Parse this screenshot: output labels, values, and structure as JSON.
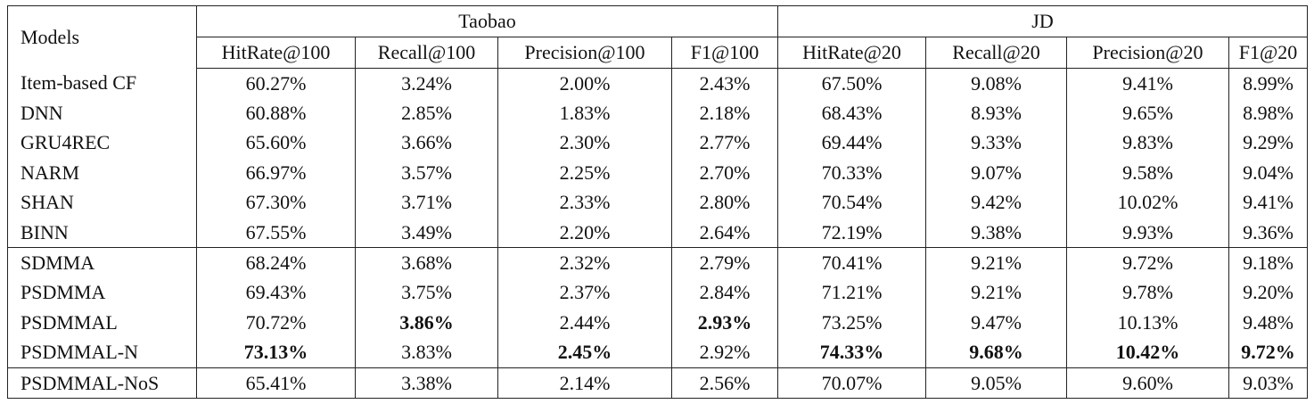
{
  "table": {
    "corner": "Models",
    "groups": [
      "Taobao",
      "JD"
    ],
    "columns": [
      "HitRate@100",
      "Recall@100",
      "Precision@100",
      "F1@100",
      "HitRate@20",
      "Recall@20",
      "Precision@20",
      "F1@20"
    ],
    "rows": [
      {
        "model": "Item-based CF",
        "values": [
          "60.27%",
          "3.24%",
          "2.00%",
          "2.43%",
          "67.50%",
          "9.08%",
          "9.41%",
          "8.99%"
        ],
        "bold": [],
        "group_start": false
      },
      {
        "model": "DNN",
        "values": [
          "60.88%",
          "2.85%",
          "1.83%",
          "2.18%",
          "68.43%",
          "8.93%",
          "9.65%",
          "8.98%"
        ],
        "bold": [],
        "group_start": false
      },
      {
        "model": "GRU4REC",
        "values": [
          "65.60%",
          "3.66%",
          "2.30%",
          "2.77%",
          "69.44%",
          "9.33%",
          "9.83%",
          "9.29%"
        ],
        "bold": [],
        "group_start": false
      },
      {
        "model": "NARM",
        "values": [
          "66.97%",
          "3.57%",
          "2.25%",
          "2.70%",
          "70.33%",
          "9.07%",
          "9.58%",
          "9.04%"
        ],
        "bold": [],
        "group_start": false
      },
      {
        "model": "SHAN",
        "values": [
          "67.30%",
          "3.71%",
          "2.33%",
          "2.80%",
          "70.54%",
          "9.42%",
          "10.02%",
          "9.41%"
        ],
        "bold": [],
        "group_start": false
      },
      {
        "model": "BINN",
        "values": [
          "67.55%",
          "3.49%",
          "2.20%",
          "2.64%",
          "72.19%",
          "9.38%",
          "9.93%",
          "9.36%"
        ],
        "bold": [],
        "group_start": false
      },
      {
        "model": "SDMMA",
        "values": [
          "68.24%",
          "3.68%",
          "2.32%",
          "2.79%",
          "70.41%",
          "9.21%",
          "9.72%",
          "9.18%"
        ],
        "bold": [],
        "group_start": true
      },
      {
        "model": "PSDMMA",
        "values": [
          "69.43%",
          "3.75%",
          "2.37%",
          "2.84%",
          "71.21%",
          "9.21%",
          "9.78%",
          "9.20%"
        ],
        "bold": [],
        "group_start": false
      },
      {
        "model": "PSDMMAL",
        "values": [
          "70.72%",
          "3.86%",
          "2.44%",
          "2.93%",
          "73.25%",
          "9.47%",
          "10.13%",
          "9.48%"
        ],
        "bold": [
          1,
          3
        ],
        "group_start": false
      },
      {
        "model": "PSDMMAL-N",
        "values": [
          "73.13%",
          "3.83%",
          "2.45%",
          "2.92%",
          "74.33%",
          "9.68%",
          "10.42%",
          "9.72%"
        ],
        "bold": [
          0,
          2,
          4,
          5,
          6,
          7
        ],
        "group_start": false
      },
      {
        "model": "PSDMMAL-NoS",
        "values": [
          "65.41%",
          "3.38%",
          "2.14%",
          "2.56%",
          "70.07%",
          "9.05%",
          "9.60%",
          "9.03%"
        ],
        "bold": [],
        "group_start": true
      }
    ]
  }
}
